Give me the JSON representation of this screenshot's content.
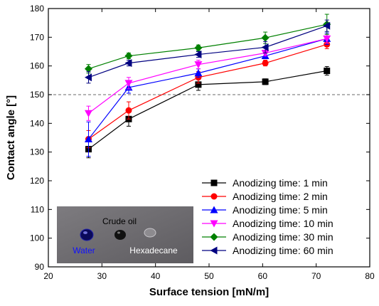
{
  "chart_data": {
    "type": "line",
    "xlabel": "Surface tension [mN/m]",
    "ylabel": "Contact angle [°]",
    "xlim": [
      20,
      80
    ],
    "ylim": [
      90,
      180
    ],
    "xticks": [
      20,
      30,
      40,
      50,
      60,
      70,
      80
    ],
    "yticks": [
      90,
      100,
      110,
      120,
      130,
      140,
      150,
      160,
      170,
      180
    ],
    "x": [
      27.5,
      35,
      48,
      60.5,
      72
    ],
    "reference_line": {
      "y": 150,
      "style": "dashed"
    },
    "legend_position": "bottom-right",
    "series": [
      {
        "name": "Anodizing time: 1 min",
        "color": "#000000",
        "marker": "square",
        "values": [
          131,
          141.5,
          153.5,
          154.5,
          158.3
        ],
        "errors": [
          3,
          2.5,
          2,
          1,
          1.5
        ]
      },
      {
        "name": "Anodizing time: 2 min",
        "color": "#ff0000",
        "marker": "circle",
        "values": [
          134.5,
          144.5,
          156,
          161,
          167.5
        ],
        "errors": [
          3,
          3,
          2,
          1,
          1.5
        ]
      },
      {
        "name": "Anodizing time: 5 min",
        "color": "#0000ff",
        "marker": "triangle-up",
        "values": [
          134.5,
          152.5,
          157.5,
          163.5,
          169.5
        ],
        "errors": [
          6,
          2,
          1.5,
          1,
          2
        ]
      },
      {
        "name": "Anodizing time: 10 min",
        "color": "#ff00ff",
        "marker": "triangle-down",
        "values": [
          143.5,
          154,
          160.5,
          164.5,
          169.5
        ],
        "errors": [
          2.5,
          2,
          1.5,
          1,
          1.5
        ]
      },
      {
        "name": "Anodizing time: 30 min",
        "color": "#008000",
        "marker": "diamond",
        "values": [
          159,
          163.5,
          166.3,
          169.8,
          174.5
        ],
        "errors": [
          1.5,
          1,
          1,
          2,
          3.5
        ]
      },
      {
        "name": "Anodizing time: 60 min",
        "color": "#000080",
        "marker": "triangle-left",
        "values": [
          156,
          161,
          164,
          166.5,
          174
        ],
        "errors": [
          2,
          1,
          1,
          2,
          2
        ]
      }
    ]
  },
  "inset": {
    "labels": {
      "crude_oil": "Crude oil",
      "water": "Water",
      "hexadecane": "Hexadecane"
    },
    "colors": {
      "background": "#6e6c70",
      "water_label": "#1010ff",
      "water_drop": "#0a0a5a"
    }
  }
}
